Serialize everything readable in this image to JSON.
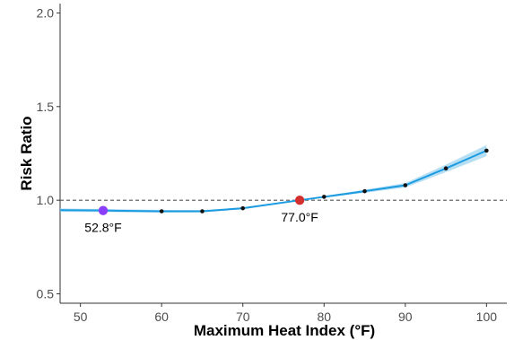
{
  "chart_data": {
    "type": "line",
    "title": "",
    "xlabel": "Maximum Heat Index (°F)",
    "ylabel": "Risk Ratio",
    "xlim": [
      47.5,
      102.5
    ],
    "ylim": [
      0.45,
      2.05
    ],
    "xticks": [
      50,
      60,
      70,
      80,
      90,
      100
    ],
    "yticks": [
      0.5,
      1.0,
      1.5,
      2.0
    ],
    "xtick_labels": [
      "50",
      "60",
      "70",
      "80",
      "90",
      "100"
    ],
    "ytick_labels": [
      "0.5",
      "1.0",
      "1.5",
      "2.0"
    ],
    "reference_line": {
      "y": 1.0,
      "style": "dashed",
      "color": "#555555"
    },
    "grid": false,
    "series": [
      {
        "curve": [
          {
            "x": 47.5,
            "y": 0.947,
            "lo": 0.938,
            "hi": 0.956
          },
          {
            "x": 52.8,
            "y": 0.945,
            "lo": 0.937,
            "hi": 0.953
          },
          {
            "x": 60,
            "y": 0.941,
            "lo": 0.934,
            "hi": 0.948
          },
          {
            "x": 65,
            "y": 0.941,
            "lo": 0.935,
            "hi": 0.947
          },
          {
            "x": 70,
            "y": 0.957,
            "lo": 0.952,
            "hi": 0.962
          },
          {
            "x": 77,
            "y": 1.0,
            "lo": 0.997,
            "hi": 1.003
          },
          {
            "x": 80,
            "y": 1.018,
            "lo": 1.013,
            "hi": 1.023
          },
          {
            "x": 85,
            "y": 1.048,
            "lo": 1.04,
            "hi": 1.056
          },
          {
            "x": 90,
            "y": 1.08,
            "lo": 1.068,
            "hi": 1.092
          },
          {
            "x": 95,
            "y": 1.17,
            "lo": 1.15,
            "hi": 1.19
          },
          {
            "x": 100,
            "y": 1.265,
            "lo": 1.235,
            "hi": 1.295
          }
        ],
        "points": [
          {
            "x": 60,
            "y": 0.941
          },
          {
            "x": 65,
            "y": 0.941
          },
          {
            "x": 70,
            "y": 0.957
          },
          {
            "x": 80,
            "y": 1.018
          },
          {
            "x": 85,
            "y": 1.048
          },
          {
            "x": 90,
            "y": 1.08
          },
          {
            "x": 95,
            "y": 1.17
          },
          {
            "x": 100,
            "y": 1.265
          }
        ],
        "line_color": "#1b9be0",
        "band_color": "#a9d9f2",
        "point_color": "#111111"
      }
    ],
    "highlights": [
      {
        "x": 52.8,
        "y": 0.945,
        "label": "52.8°F",
        "color": "#8a3ffc"
      },
      {
        "x": 77.0,
        "y": 1.0,
        "label": "77.0°F",
        "color": "#d32f2f"
      }
    ]
  }
}
